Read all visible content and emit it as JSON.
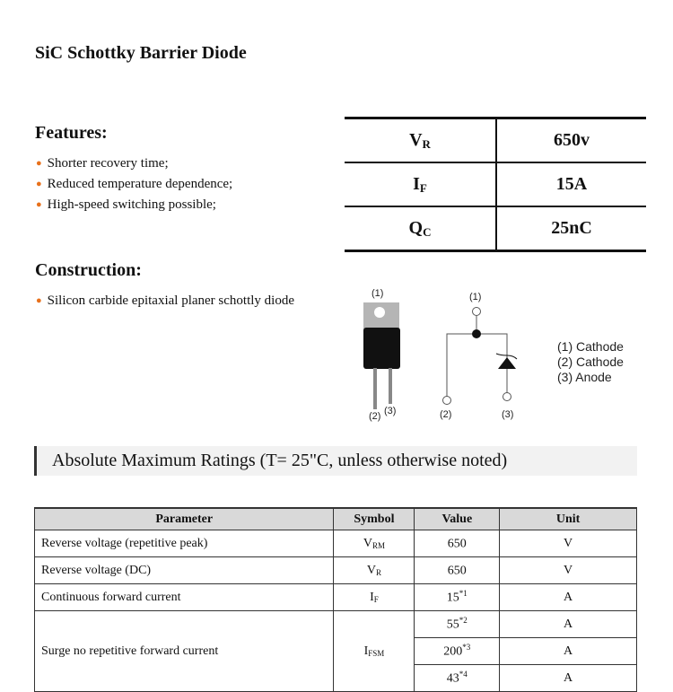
{
  "title": "SiC Schottky Barrier Diode",
  "features": {
    "heading": "Features:",
    "items": [
      "Shorter recovery time;",
      "Reduced temperature dependence;",
      "High-speed switching possible;"
    ]
  },
  "construction": {
    "heading": "Construction:",
    "items": [
      "Silicon carbide epitaxial planer schottly diode"
    ]
  },
  "key_specs": [
    {
      "symbol": "V",
      "sub": "R",
      "value": "650v"
    },
    {
      "symbol": "I",
      "sub": "F",
      "value": "15A"
    },
    {
      "symbol": "Q",
      "sub": "C",
      "value": "25nC"
    }
  ],
  "diagram": {
    "pin_labels": [
      "(1)",
      "(2)",
      "(3)"
    ],
    "legend": [
      "(1) Cathode",
      "(2) Cathode",
      "(3) Anode"
    ],
    "accent_color": "#e8711c"
  },
  "section_title": "Absolute Maximum Ratings (T= 25\"C, unless otherwise noted)",
  "ratings": {
    "headers": [
      "Parameter",
      "Symbol",
      "Value",
      "Unit"
    ],
    "rows": [
      {
        "parameter": "Reverse voltage (repetitive peak)",
        "symbol": "V",
        "sub": "RM",
        "value": "650",
        "note": "",
        "unit": "V"
      },
      {
        "parameter": "Reverse voltage (DC)",
        "symbol": "V",
        "sub": "R",
        "value": "650",
        "note": "",
        "unit": "V"
      },
      {
        "parameter": "Continuous forward current",
        "symbol": "I",
        "sub": "F",
        "value": "15",
        "note": "*1",
        "unit": "A"
      }
    ],
    "surge": {
      "parameter": "Surge no repetitive forward current",
      "symbol": "I",
      "sub": "FSM",
      "values": [
        {
          "value": "55",
          "note": "*2",
          "unit": "A"
        },
        {
          "value": "200",
          "note": "*3",
          "unit": "A"
        },
        {
          "value": "43",
          "note": "*4",
          "unit": "A"
        }
      ]
    }
  }
}
